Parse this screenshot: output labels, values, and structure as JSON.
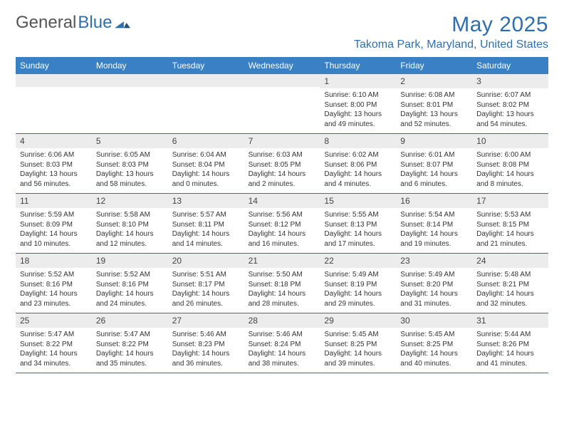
{
  "brand": {
    "part1": "General",
    "part2": "Blue"
  },
  "title": "May 2025",
  "location": "Takoma Park, Maryland, United States",
  "colors": {
    "accent": "#2f6fae",
    "header_bg": "#3a80c4",
    "daynum_bg": "#ececec",
    "text": "#333333",
    "bg": "#ffffff"
  },
  "days_of_week": [
    "Sunday",
    "Monday",
    "Tuesday",
    "Wednesday",
    "Thursday",
    "Friday",
    "Saturday"
  ],
  "weeks": [
    [
      {
        "n": "",
        "sr": "",
        "ss": "",
        "dl": ""
      },
      {
        "n": "",
        "sr": "",
        "ss": "",
        "dl": ""
      },
      {
        "n": "",
        "sr": "",
        "ss": "",
        "dl": ""
      },
      {
        "n": "",
        "sr": "",
        "ss": "",
        "dl": ""
      },
      {
        "n": "1",
        "sr": "Sunrise: 6:10 AM",
        "ss": "Sunset: 8:00 PM",
        "dl": "Daylight: 13 hours and 49 minutes."
      },
      {
        "n": "2",
        "sr": "Sunrise: 6:08 AM",
        "ss": "Sunset: 8:01 PM",
        "dl": "Daylight: 13 hours and 52 minutes."
      },
      {
        "n": "3",
        "sr": "Sunrise: 6:07 AM",
        "ss": "Sunset: 8:02 PM",
        "dl": "Daylight: 13 hours and 54 minutes."
      }
    ],
    [
      {
        "n": "4",
        "sr": "Sunrise: 6:06 AM",
        "ss": "Sunset: 8:03 PM",
        "dl": "Daylight: 13 hours and 56 minutes."
      },
      {
        "n": "5",
        "sr": "Sunrise: 6:05 AM",
        "ss": "Sunset: 8:03 PM",
        "dl": "Daylight: 13 hours and 58 minutes."
      },
      {
        "n": "6",
        "sr": "Sunrise: 6:04 AM",
        "ss": "Sunset: 8:04 PM",
        "dl": "Daylight: 14 hours and 0 minutes."
      },
      {
        "n": "7",
        "sr": "Sunrise: 6:03 AM",
        "ss": "Sunset: 8:05 PM",
        "dl": "Daylight: 14 hours and 2 minutes."
      },
      {
        "n": "8",
        "sr": "Sunrise: 6:02 AM",
        "ss": "Sunset: 8:06 PM",
        "dl": "Daylight: 14 hours and 4 minutes."
      },
      {
        "n": "9",
        "sr": "Sunrise: 6:01 AM",
        "ss": "Sunset: 8:07 PM",
        "dl": "Daylight: 14 hours and 6 minutes."
      },
      {
        "n": "10",
        "sr": "Sunrise: 6:00 AM",
        "ss": "Sunset: 8:08 PM",
        "dl": "Daylight: 14 hours and 8 minutes."
      }
    ],
    [
      {
        "n": "11",
        "sr": "Sunrise: 5:59 AM",
        "ss": "Sunset: 8:09 PM",
        "dl": "Daylight: 14 hours and 10 minutes."
      },
      {
        "n": "12",
        "sr": "Sunrise: 5:58 AM",
        "ss": "Sunset: 8:10 PM",
        "dl": "Daylight: 14 hours and 12 minutes."
      },
      {
        "n": "13",
        "sr": "Sunrise: 5:57 AM",
        "ss": "Sunset: 8:11 PM",
        "dl": "Daylight: 14 hours and 14 minutes."
      },
      {
        "n": "14",
        "sr": "Sunrise: 5:56 AM",
        "ss": "Sunset: 8:12 PM",
        "dl": "Daylight: 14 hours and 16 minutes."
      },
      {
        "n": "15",
        "sr": "Sunrise: 5:55 AM",
        "ss": "Sunset: 8:13 PM",
        "dl": "Daylight: 14 hours and 17 minutes."
      },
      {
        "n": "16",
        "sr": "Sunrise: 5:54 AM",
        "ss": "Sunset: 8:14 PM",
        "dl": "Daylight: 14 hours and 19 minutes."
      },
      {
        "n": "17",
        "sr": "Sunrise: 5:53 AM",
        "ss": "Sunset: 8:15 PM",
        "dl": "Daylight: 14 hours and 21 minutes."
      }
    ],
    [
      {
        "n": "18",
        "sr": "Sunrise: 5:52 AM",
        "ss": "Sunset: 8:16 PM",
        "dl": "Daylight: 14 hours and 23 minutes."
      },
      {
        "n": "19",
        "sr": "Sunrise: 5:52 AM",
        "ss": "Sunset: 8:16 PM",
        "dl": "Daylight: 14 hours and 24 minutes."
      },
      {
        "n": "20",
        "sr": "Sunrise: 5:51 AM",
        "ss": "Sunset: 8:17 PM",
        "dl": "Daylight: 14 hours and 26 minutes."
      },
      {
        "n": "21",
        "sr": "Sunrise: 5:50 AM",
        "ss": "Sunset: 8:18 PM",
        "dl": "Daylight: 14 hours and 28 minutes."
      },
      {
        "n": "22",
        "sr": "Sunrise: 5:49 AM",
        "ss": "Sunset: 8:19 PM",
        "dl": "Daylight: 14 hours and 29 minutes."
      },
      {
        "n": "23",
        "sr": "Sunrise: 5:49 AM",
        "ss": "Sunset: 8:20 PM",
        "dl": "Daylight: 14 hours and 31 minutes."
      },
      {
        "n": "24",
        "sr": "Sunrise: 5:48 AM",
        "ss": "Sunset: 8:21 PM",
        "dl": "Daylight: 14 hours and 32 minutes."
      }
    ],
    [
      {
        "n": "25",
        "sr": "Sunrise: 5:47 AM",
        "ss": "Sunset: 8:22 PM",
        "dl": "Daylight: 14 hours and 34 minutes."
      },
      {
        "n": "26",
        "sr": "Sunrise: 5:47 AM",
        "ss": "Sunset: 8:22 PM",
        "dl": "Daylight: 14 hours and 35 minutes."
      },
      {
        "n": "27",
        "sr": "Sunrise: 5:46 AM",
        "ss": "Sunset: 8:23 PM",
        "dl": "Daylight: 14 hours and 36 minutes."
      },
      {
        "n": "28",
        "sr": "Sunrise: 5:46 AM",
        "ss": "Sunset: 8:24 PM",
        "dl": "Daylight: 14 hours and 38 minutes."
      },
      {
        "n": "29",
        "sr": "Sunrise: 5:45 AM",
        "ss": "Sunset: 8:25 PM",
        "dl": "Daylight: 14 hours and 39 minutes."
      },
      {
        "n": "30",
        "sr": "Sunrise: 5:45 AM",
        "ss": "Sunset: 8:25 PM",
        "dl": "Daylight: 14 hours and 40 minutes."
      },
      {
        "n": "31",
        "sr": "Sunrise: 5:44 AM",
        "ss": "Sunset: 8:26 PM",
        "dl": "Daylight: 14 hours and 41 minutes."
      }
    ]
  ]
}
